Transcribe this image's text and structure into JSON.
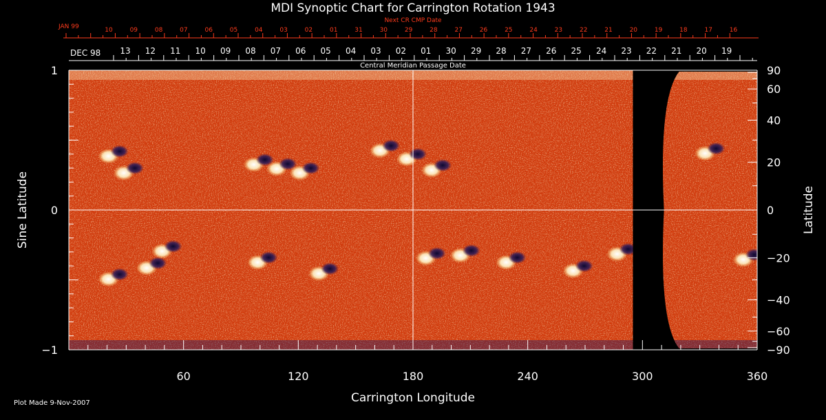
{
  "chart_data": {
    "type": "heatmap",
    "title": "MDI Synoptic Chart for Carrington Rotation 1943",
    "xlabel": "Carrington Longitude",
    "ylabel_left": "Sine Latitude",
    "ylabel_right": "Latitude",
    "xlim": [
      0,
      360
    ],
    "ylim": [
      -1,
      1
    ],
    "x_ticks_labeled": [
      60,
      120,
      180,
      240,
      300,
      360
    ],
    "y_left_ticks_labeled": [
      {
        "value": -1,
        "label": "−1"
      },
      {
        "value": 0,
        "label": "0"
      },
      {
        "value": 1,
        "label": "1"
      }
    ],
    "y_right_ticks_labeled": [
      {
        "value": 90,
        "label": "90"
      },
      {
        "value": 60,
        "label": "60"
      },
      {
        "value": 40,
        "label": "40"
      },
      {
        "value": 20,
        "label": "20"
      },
      {
        "value": 0,
        "label": "0"
      },
      {
        "value": -20,
        "label": "−20"
      },
      {
        "value": -40,
        "label": "−40"
      },
      {
        "value": -60,
        "label": "−60"
      },
      {
        "value": -90,
        "label": "−90"
      }
    ],
    "grid_lines": {
      "longitude": [
        180
      ],
      "sine_latitude": [
        0
      ]
    },
    "data_coverage_longitude": [
      [
        0,
        295
      ],
      [
        312,
        360
      ]
    ],
    "top_axis_cr_cmp": {
      "title": "Next CR CMP Date",
      "first_label": "JAN 99",
      "days": [
        "10",
        "09",
        "08",
        "07",
        "06",
        "05",
        "04",
        "03",
        "02",
        "01",
        "31",
        "30",
        "29",
        "28",
        "27",
        "26",
        "25",
        "24",
        "23",
        "22",
        "21",
        "20",
        "19",
        "18",
        "17",
        "16"
      ]
    },
    "top_axis_cmp": {
      "title": "Central Meridian Passage Date",
      "first_label": "DEC 98",
      "days": [
        "13",
        "12",
        "11",
        "10",
        "09",
        "08",
        "07",
        "06",
        "05",
        "04",
        "03",
        "02",
        "01",
        "30",
        "29",
        "28",
        "27",
        "26",
        "25",
        "24",
        "23",
        "22",
        "21",
        "20",
        "19"
      ]
    },
    "active_regions": [
      {
        "lon": 24,
        "sinlat": 0.4
      },
      {
        "lon": 32,
        "sinlat": 0.28
      },
      {
        "lon": 100,
        "sinlat": 0.34
      },
      {
        "lon": 112,
        "sinlat": 0.31
      },
      {
        "lon": 124,
        "sinlat": 0.28
      },
      {
        "lon": 166,
        "sinlat": 0.44
      },
      {
        "lon": 180,
        "sinlat": 0.38
      },
      {
        "lon": 193,
        "sinlat": 0.3
      },
      {
        "lon": 336,
        "sinlat": 0.42
      },
      {
        "lon": 24,
        "sinlat": -0.48
      },
      {
        "lon": 44,
        "sinlat": -0.4
      },
      {
        "lon": 52,
        "sinlat": -0.28
      },
      {
        "lon": 102,
        "sinlat": -0.36
      },
      {
        "lon": 134,
        "sinlat": -0.44
      },
      {
        "lon": 190,
        "sinlat": -0.33
      },
      {
        "lon": 208,
        "sinlat": -0.31
      },
      {
        "lon": 232,
        "sinlat": -0.36
      },
      {
        "lon": 267,
        "sinlat": -0.42
      },
      {
        "lon": 290,
        "sinlat": -0.3
      },
      {
        "lon": 356,
        "sinlat": -0.34
      }
    ],
    "colors": {
      "background": "#000000",
      "map_base": "#d23a0c",
      "positive": "#ffffff",
      "negative": "#1c1450",
      "red_axis": "#ff3b1c",
      "axis": "#ffffff"
    }
  },
  "footer": {
    "plot_made": "Plot Made  9-Nov-2007"
  }
}
